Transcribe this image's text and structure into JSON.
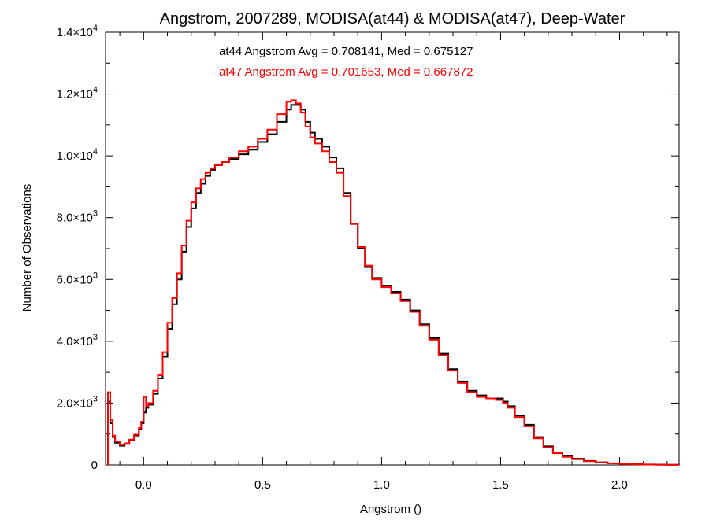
{
  "chart_data": {
    "type": "line",
    "style": "step",
    "title": "Angstrom, 2007289, MODISA(at44) & MODISA(at47), Deep-Water",
    "xlabel": "Angstrom ()",
    "ylabel": "Number of Observations",
    "xlim": [
      -0.16,
      2.25
    ],
    "ylim": [
      0,
      14000
    ],
    "grid": false,
    "x_ticks": [
      {
        "value": 0.0,
        "label": "0.0"
      },
      {
        "value": 0.5,
        "label": "0.5"
      },
      {
        "value": 1.0,
        "label": "1.0"
      },
      {
        "value": 1.5,
        "label": "1.5"
      },
      {
        "value": 2.0,
        "label": "2.0"
      }
    ],
    "y_ticks": [
      {
        "value": 0,
        "mant": "0",
        "exp": ""
      },
      {
        "value": 2000,
        "mant": "2.0×10",
        "exp": "3"
      },
      {
        "value": 4000,
        "mant": "4.0×10",
        "exp": "3"
      },
      {
        "value": 6000,
        "mant": "6.0×10",
        "exp": "3"
      },
      {
        "value": 8000,
        "mant": "8.0×10",
        "exp": "3"
      },
      {
        "value": 10000,
        "mant": "1.0×10",
        "exp": "4"
      },
      {
        "value": 12000,
        "mant": "1.2×10",
        "exp": "4"
      },
      {
        "value": 14000,
        "mant": "1.4×10",
        "exp": "4"
      }
    ],
    "annotations": [
      {
        "text": "at44 Angstrom Avg = 0.708141, Med = 0.675127",
        "color": "#000000"
      },
      {
        "text": "at47 Angstrom Avg = 0.701653, Med = 0.667872",
        "color": "#ff0000"
      }
    ],
    "series": [
      {
        "color": "#000000",
        "x": [
          -0.15,
          -0.14,
          -0.13,
          -0.12,
          -0.1,
          -0.08,
          -0.06,
          -0.04,
          -0.02,
          -0.01,
          0.0,
          0.01,
          0.02,
          0.04,
          0.06,
          0.08,
          0.1,
          0.12,
          0.14,
          0.16,
          0.18,
          0.2,
          0.22,
          0.24,
          0.26,
          0.28,
          0.3,
          0.33,
          0.36,
          0.4,
          0.44,
          0.48,
          0.52,
          0.56,
          0.6,
          0.62,
          0.64,
          0.66,
          0.68,
          0.7,
          0.72,
          0.75,
          0.78,
          0.81,
          0.84,
          0.87,
          0.9,
          0.93,
          0.96,
          1.0,
          1.04,
          1.08,
          1.12,
          1.16,
          1.2,
          1.24,
          1.28,
          1.32,
          1.36,
          1.4,
          1.44,
          1.48,
          1.51,
          1.53,
          1.56,
          1.6,
          1.64,
          1.68,
          1.72,
          1.76,
          1.8,
          1.85,
          1.9,
          1.95,
          2.0,
          2.05,
          2.1,
          2.15,
          2.2,
          2.25
        ],
        "y": [
          2050,
          1350,
          900,
          720,
          620,
          680,
          800,
          950,
          1150,
          1350,
          1700,
          1850,
          1950,
          2300,
          2800,
          3500,
          4400,
          5200,
          6000,
          6900,
          7700,
          8300,
          8800,
          9100,
          9350,
          9550,
          9700,
          9800,
          9900,
          10050,
          10200,
          10450,
          10700,
          11100,
          11500,
          11650,
          11650,
          11500,
          11100,
          10750,
          10550,
          10300,
          9950,
          9600,
          8800,
          7800,
          7000,
          6400,
          6050,
          5800,
          5600,
          5350,
          5000,
          4550,
          4100,
          3600,
          3100,
          2700,
          2400,
          2250,
          2150,
          2150,
          2050,
          1900,
          1600,
          1300,
          900,
          600,
          400,
          280,
          200,
          130,
          85,
          55,
          35,
          25,
          15,
          10,
          5,
          0
        ]
      },
      {
        "color": "#ff0000",
        "x": [
          -0.15,
          -0.14,
          -0.13,
          -0.12,
          -0.1,
          -0.08,
          -0.06,
          -0.04,
          -0.02,
          -0.01,
          0.0,
          0.01,
          0.02,
          0.04,
          0.06,
          0.08,
          0.1,
          0.12,
          0.14,
          0.16,
          0.18,
          0.2,
          0.22,
          0.24,
          0.26,
          0.28,
          0.3,
          0.33,
          0.36,
          0.4,
          0.44,
          0.48,
          0.52,
          0.56,
          0.6,
          0.62,
          0.64,
          0.66,
          0.68,
          0.7,
          0.72,
          0.75,
          0.78,
          0.81,
          0.84,
          0.87,
          0.9,
          0.93,
          0.96,
          1.0,
          1.04,
          1.08,
          1.12,
          1.16,
          1.2,
          1.24,
          1.28,
          1.32,
          1.36,
          1.4,
          1.44,
          1.48,
          1.51,
          1.53,
          1.56,
          1.6,
          1.64,
          1.68,
          1.72,
          1.76,
          1.8,
          1.85,
          1.9,
          1.95,
          2.0,
          2.05,
          2.1,
          2.15,
          2.2,
          2.25
        ],
        "y": [
          2350,
          1450,
          950,
          760,
          650,
          700,
          820,
          980,
          1200,
          1400,
          2200,
          1900,
          2000,
          2400,
          2900,
          3650,
          4600,
          5400,
          6200,
          7100,
          7900,
          8500,
          8950,
          9250,
          9450,
          9600,
          9700,
          9800,
          9950,
          10150,
          10300,
          10550,
          10850,
          11350,
          11750,
          11800,
          11700,
          11400,
          10950,
          10600,
          10400,
          10150,
          9800,
          9450,
          8700,
          7800,
          7050,
          6450,
          6000,
          5750,
          5550,
          5300,
          4950,
          4500,
          4050,
          3550,
          3050,
          2650,
          2350,
          2200,
          2150,
          2100,
          2000,
          1850,
          1550,
          1250,
          860,
          570,
          380,
          260,
          185,
          120,
          80,
          50,
          32,
          22,
          14,
          9,
          4,
          0
        ]
      }
    ]
  }
}
